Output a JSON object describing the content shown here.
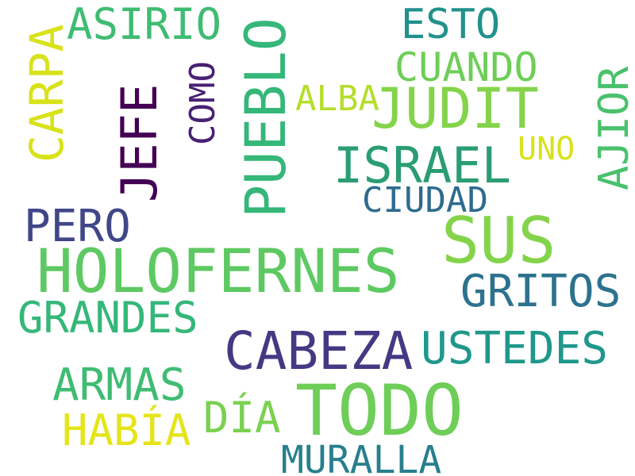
{
  "words": {
    "asirio": {
      "text": "ASIRIO",
      "color": "#3fbc73"
    },
    "esto": {
      "text": "ESTO",
      "color": "#21918c"
    },
    "cuando": {
      "text": "CUANDO",
      "color": "#6ece58"
    },
    "alba": {
      "text": "ALBA",
      "color": "#b5de2b"
    },
    "judit": {
      "text": "JUDIT",
      "color": "#84d44b"
    },
    "uno": {
      "text": "UNO",
      "color": "#d8e219"
    },
    "israel": {
      "text": "ISRAEL",
      "color": "#2a9d72"
    },
    "ciudad": {
      "text": "CIUDAD",
      "color": "#2e6b8e"
    },
    "pero": {
      "text": "PERO",
      "color": "#404688"
    },
    "sus": {
      "text": "SUS",
      "color": "#84d44b"
    },
    "holofernes": {
      "text": "HOLOFERNES",
      "color": "#5ec962"
    },
    "gritos": {
      "text": "GRITOS",
      "color": "#2c728e"
    },
    "grandes": {
      "text": "GRANDES",
      "color": "#35b779"
    },
    "cabeza": {
      "text": "CABEZA",
      "color": "#443983"
    },
    "ustedes": {
      "text": "USTEDES",
      "color": "#1f988b"
    },
    "armas": {
      "text": "ARMAS",
      "color": "#3fbc73"
    },
    "todo": {
      "text": "TODO",
      "color": "#6ece58"
    },
    "dia": {
      "text": "DÍA",
      "color": "#7ad151"
    },
    "habia": {
      "text": "HABÍA",
      "color": "#e5e419"
    },
    "muralla": {
      "text": "MURALLA",
      "color": "#277f8e"
    },
    "carpa": {
      "text": "CARPA",
      "color": "#d8e219"
    },
    "jefe": {
      "text": "JEFE",
      "color": "#440154"
    },
    "como": {
      "text": "COMO",
      "color": "#482173"
    },
    "pueblo": {
      "text": "PUEBLO",
      "color": "#35b779"
    },
    "ajior": {
      "text": "AJIOR",
      "color": "#4ac16d"
    }
  }
}
